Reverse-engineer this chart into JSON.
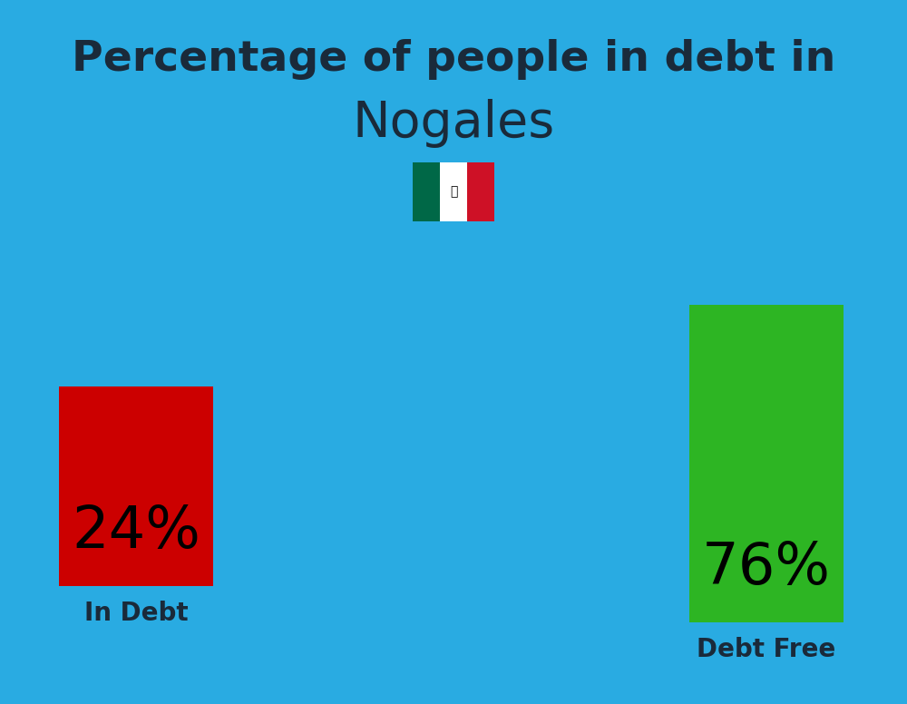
{
  "title_line1": "Percentage of people in debt in",
  "title_line2": "Nogales",
  "title1_fontsize": 34,
  "title2_fontsize": 40,
  "title_color": "#1a2a3a",
  "title_fontweight": "bold",
  "background_color": "#29ABE2",
  "bar_left_value": "24%",
  "bar_left_label": "In Debt",
  "bar_left_color": "#CC0000",
  "bar_right_value": "76%",
  "bar_right_label": "Debt Free",
  "bar_right_color": "#2DB523",
  "bar_text_color": "#000000",
  "bar_label_color": "#1a2a3a",
  "bar_fontsize": 46,
  "label_fontsize": 20,
  "flag_green": "#006847",
  "flag_white": "#FFFFFF",
  "flag_red": "#CE1126"
}
